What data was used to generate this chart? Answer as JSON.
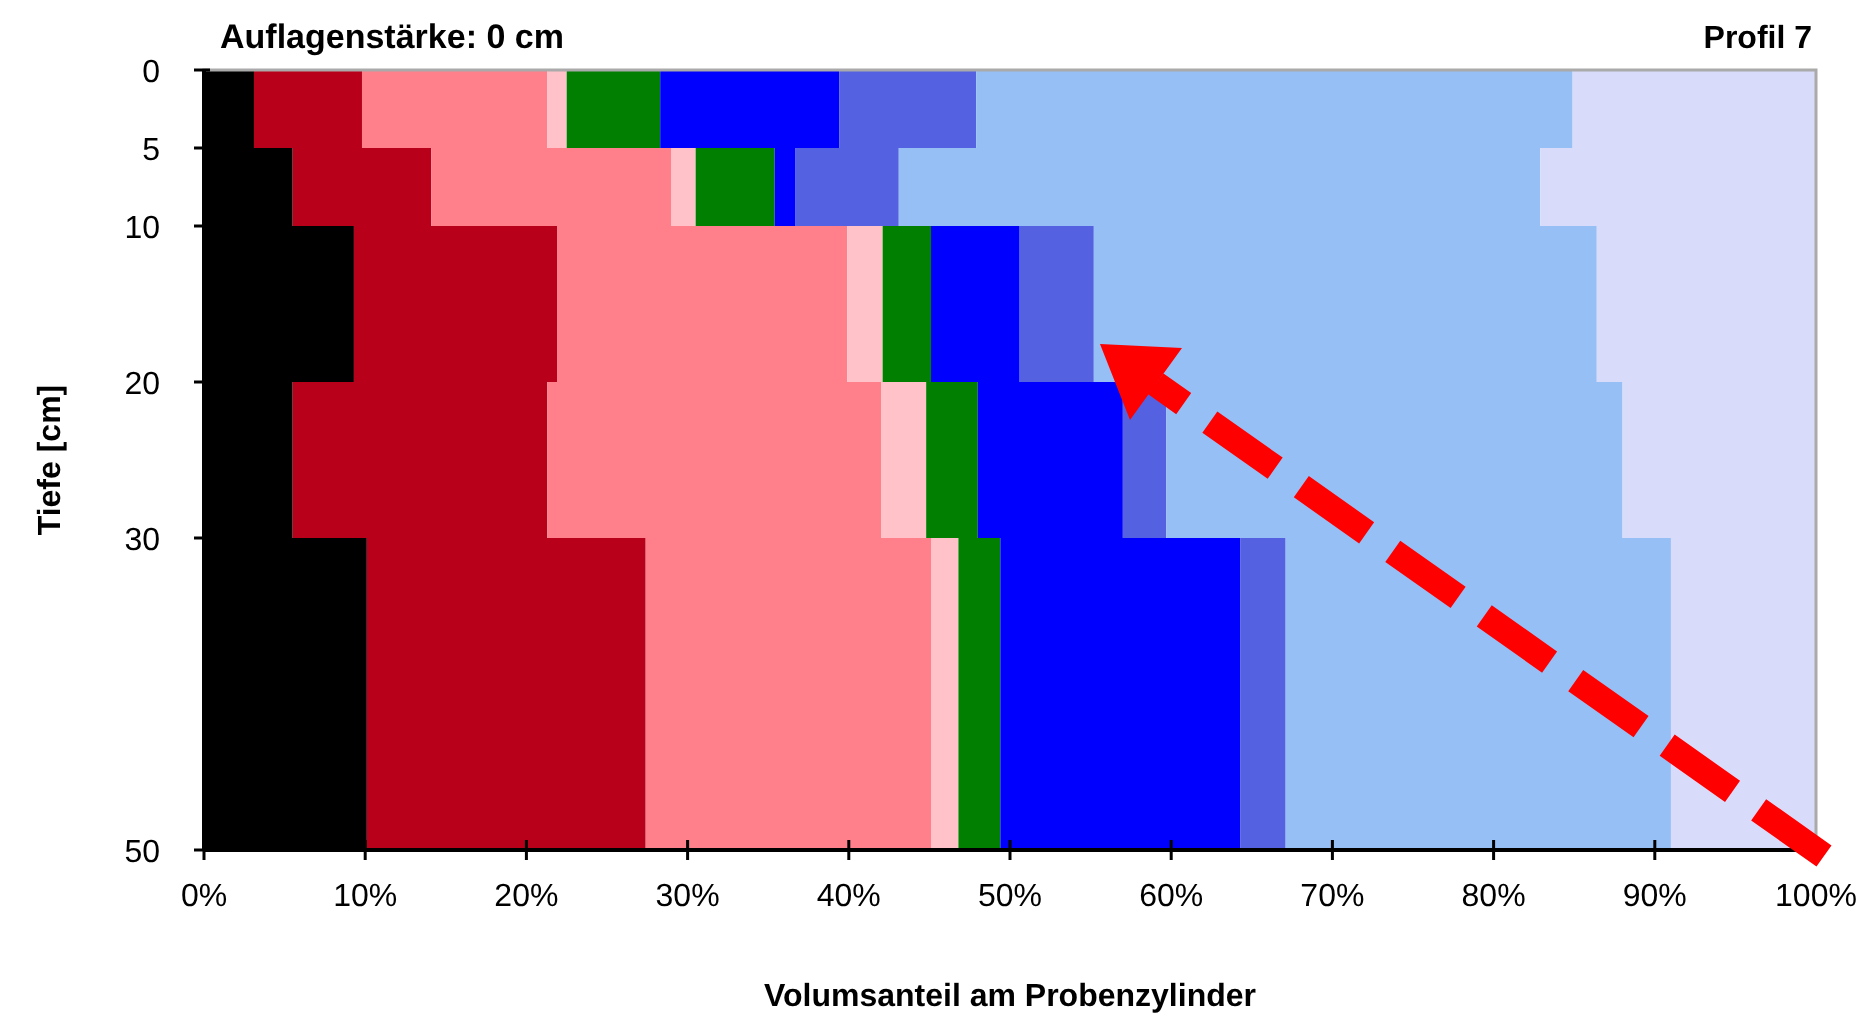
{
  "chart_data": {
    "type": "bar",
    "orientation": "horizontal",
    "stacked": true,
    "title": "Auflagenstärke: 0 cm",
    "annotations": [
      "Profil 7"
    ],
    "xlabel": "Volumsanteil am Probenzylinder",
    "ylabel": "Tiefe [cm]",
    "x": [
      2.5,
      7.5,
      15,
      25,
      40
    ],
    "xlim": [
      0,
      100
    ],
    "xticks": [
      {
        "value": 0,
        "label": "0%"
      },
      {
        "value": 10,
        "label": "10%"
      },
      {
        "value": 20,
        "label": "20%"
      },
      {
        "value": 30,
        "label": "30%"
      },
      {
        "value": 40,
        "label": "40%"
      },
      {
        "value": 50,
        "label": "50%"
      },
      {
        "value": 60,
        "label": "60%"
      },
      {
        "value": 70,
        "label": "70%"
      },
      {
        "value": 80,
        "label": "80%"
      },
      {
        "value": 90,
        "label": "90%"
      },
      {
        "value": 100,
        "label": "100%"
      }
    ],
    "ylim": [
      50,
      0
    ],
    "yticks": [
      0,
      5,
      10,
      20,
      30,
      50
    ],
    "grid": false,
    "legend": false,
    "series": [
      {
        "color": "#000000",
        "values": [
          3.1,
          5.5,
          9.3,
          5.5,
          10.1
        ]
      },
      {
        "color": "#b8001b",
        "values": [
          6.7,
          8.6,
          12.6,
          15.8,
          17.3
        ]
      },
      {
        "color": "#ff7f8a",
        "values": [
          11.5,
          14.9,
          18.0,
          20.7,
          17.7
        ]
      },
      {
        "color": "#ffc2c8",
        "values": [
          1.2,
          1.5,
          2.2,
          2.8,
          1.7
        ]
      },
      {
        "color": "#007f00",
        "values": [
          5.8,
          4.9,
          3.0,
          3.2,
          2.6
        ]
      },
      {
        "color": "#0000ff",
        "values": [
          11.1,
          1.3,
          5.5,
          9.0,
          14.9
        ]
      },
      {
        "color": "#5462e2",
        "values": [
          8.5,
          6.4,
          4.6,
          2.7,
          2.8
        ]
      },
      {
        "color": "#95bff5",
        "values": [
          37.0,
          39.8,
          31.2,
          28.3,
          23.9
        ]
      },
      {
        "color": "#d8dbf9",
        "values": [
          15.1,
          17.1,
          13.6,
          12.0,
          9.0
        ]
      }
    ]
  }
}
